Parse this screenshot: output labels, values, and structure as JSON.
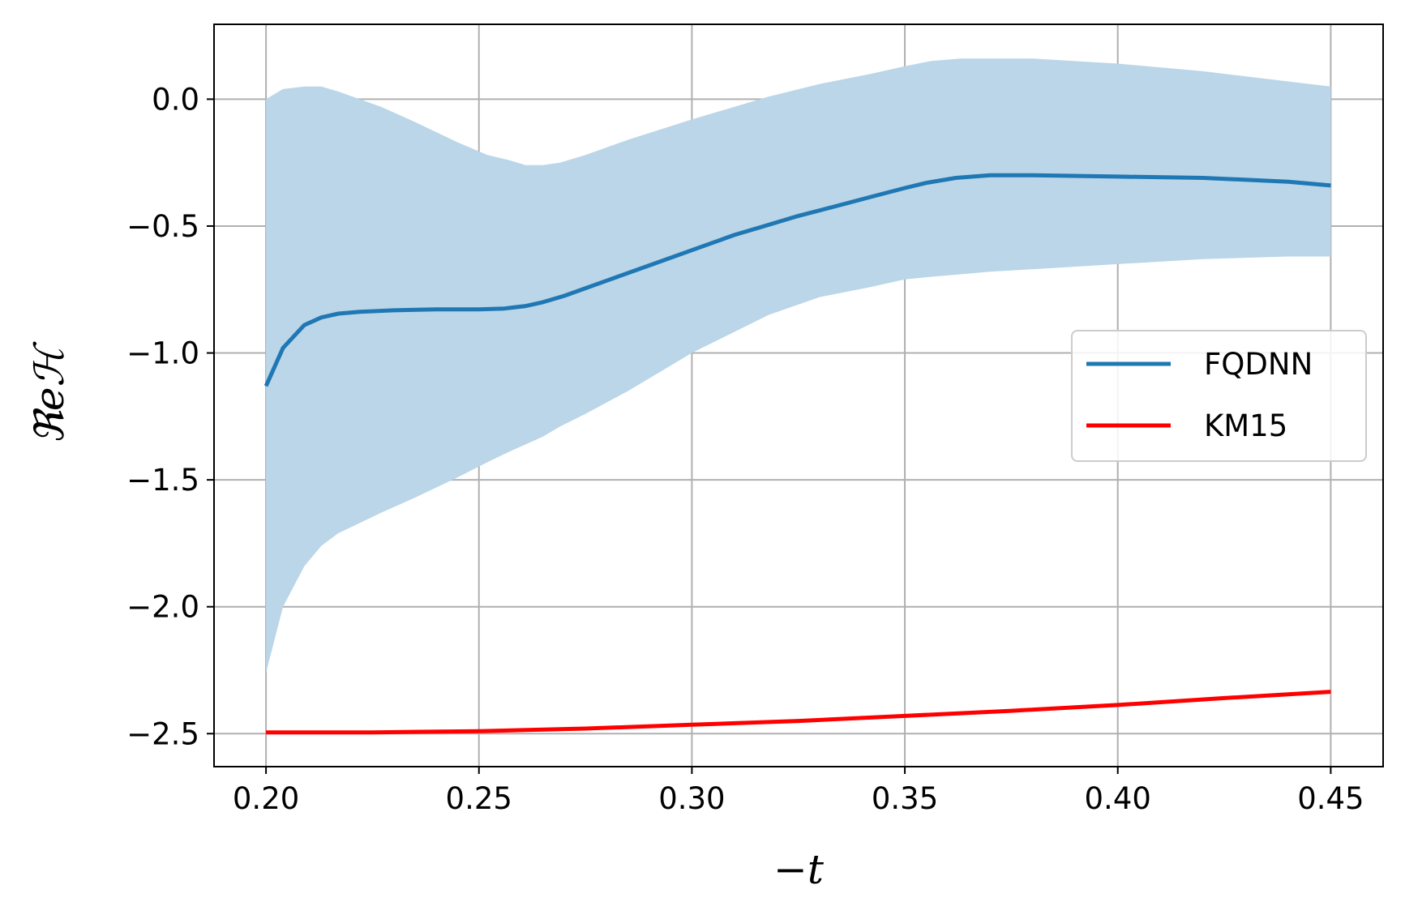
{
  "chart_data": {
    "type": "line",
    "xlabel": "−t",
    "ylabel": "ℜeℋ",
    "xlim": [
      0.1878,
      0.4623
    ],
    "ylim": [
      -2.63,
      0.295
    ],
    "x_ticks": [
      {
        "value": 0.2,
        "label": "0.20"
      },
      {
        "value": 0.25,
        "label": "0.25"
      },
      {
        "value": 0.3,
        "label": "0.30"
      },
      {
        "value": 0.35,
        "label": "0.35"
      },
      {
        "value": 0.4,
        "label": "0.40"
      },
      {
        "value": 0.45,
        "label": "0.45"
      }
    ],
    "y_ticks": [
      {
        "value": 0.0,
        "label": "0.0"
      },
      {
        "value": -0.5,
        "label": "−0.5"
      },
      {
        "value": -1.0,
        "label": "−1.0"
      },
      {
        "value": -1.5,
        "label": "−1.5"
      },
      {
        "value": -2.0,
        "label": "−2.0"
      },
      {
        "value": -2.5,
        "label": "−2.5"
      }
    ],
    "grid": true,
    "legend_position": "center-right",
    "band": {
      "color": "#bad6e8",
      "x": [
        0.2,
        0.204,
        0.209,
        0.213,
        0.217,
        0.222,
        0.227,
        0.235,
        0.245,
        0.252,
        0.257,
        0.261,
        0.265,
        0.269,
        0.275,
        0.285,
        0.3,
        0.318,
        0.33,
        0.342,
        0.35,
        0.356,
        0.363,
        0.37,
        0.38,
        0.4,
        0.42,
        0.44,
        0.45
      ],
      "upper": [
        0.0,
        0.04,
        0.05,
        0.05,
        0.03,
        0.0,
        -0.03,
        -0.09,
        -0.17,
        -0.22,
        -0.24,
        -0.26,
        -0.26,
        -0.25,
        -0.22,
        -0.16,
        -0.08,
        0.01,
        0.06,
        0.1,
        0.13,
        0.15,
        0.16,
        0.16,
        0.16,
        0.14,
        0.11,
        0.07,
        0.05
      ],
      "lower": [
        -2.26,
        -2.0,
        -1.84,
        -1.76,
        -1.71,
        -1.67,
        -1.63,
        -1.57,
        -1.49,
        -1.43,
        -1.39,
        -1.36,
        -1.33,
        -1.29,
        -1.24,
        -1.15,
        -1.0,
        -0.85,
        -0.78,
        -0.74,
        -0.71,
        -0.7,
        -0.69,
        -0.68,
        -0.67,
        -0.65,
        -0.63,
        -0.62,
        -0.62
      ]
    },
    "series": [
      {
        "name": "FQDNN",
        "color": "#1f77b4",
        "x": [
          0.2,
          0.204,
          0.209,
          0.213,
          0.217,
          0.222,
          0.23,
          0.24,
          0.25,
          0.256,
          0.261,
          0.265,
          0.27,
          0.28,
          0.29,
          0.3,
          0.31,
          0.317,
          0.325,
          0.333,
          0.342,
          0.35,
          0.355,
          0.362,
          0.37,
          0.38,
          0.4,
          0.42,
          0.44,
          0.45
        ],
        "values": [
          -1.13,
          -0.98,
          -0.89,
          -0.86,
          -0.845,
          -0.838,
          -0.832,
          -0.828,
          -0.828,
          -0.825,
          -0.815,
          -0.8,
          -0.775,
          -0.715,
          -0.655,
          -0.595,
          -0.535,
          -0.5,
          -0.46,
          -0.425,
          -0.385,
          -0.35,
          -0.33,
          -0.31,
          -0.3,
          -0.3,
          -0.305,
          -0.31,
          -0.325,
          -0.34
        ]
      },
      {
        "name": "KM15",
        "color": "#ff0000",
        "x": [
          0.2,
          0.225,
          0.25,
          0.275,
          0.3,
          0.325,
          0.35,
          0.375,
          0.4,
          0.425,
          0.45
        ],
        "values": [
          -2.495,
          -2.495,
          -2.49,
          -2.48,
          -2.465,
          -2.45,
          -2.43,
          -2.41,
          -2.387,
          -2.36,
          -2.335
        ]
      }
    ]
  }
}
